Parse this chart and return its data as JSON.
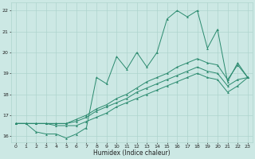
{
  "x_values": [
    0,
    1,
    2,
    3,
    4,
    5,
    6,
    7,
    8,
    9,
    10,
    11,
    12,
    13,
    14,
    15,
    16,
    17,
    18,
    19,
    20,
    21,
    22,
    23
  ],
  "line1": [
    16.6,
    16.6,
    16.2,
    16.1,
    16.1,
    15.9,
    16.1,
    16.4,
    18.8,
    18.5,
    19.8,
    19.2,
    20.0,
    19.3,
    20.0,
    21.6,
    22.0,
    21.7,
    22.0,
    20.2,
    21.1,
    18.6,
    19.5,
    18.8
  ],
  "line2": [
    16.6,
    16.6,
    16.6,
    16.6,
    16.6,
    16.6,
    16.8,
    17.0,
    17.3,
    17.5,
    17.8,
    18.0,
    18.3,
    18.6,
    18.8,
    19.0,
    19.3,
    19.5,
    19.7,
    19.5,
    19.4,
    18.7,
    19.4,
    18.8
  ],
  "line3": [
    16.6,
    16.6,
    16.6,
    16.6,
    16.6,
    16.6,
    16.7,
    16.9,
    17.2,
    17.4,
    17.6,
    17.8,
    18.1,
    18.3,
    18.5,
    18.7,
    18.9,
    19.1,
    19.3,
    19.1,
    19.0,
    18.4,
    18.7,
    18.8
  ],
  "line4": [
    16.6,
    16.6,
    16.6,
    16.6,
    16.5,
    16.5,
    16.5,
    16.7,
    16.9,
    17.1,
    17.4,
    17.6,
    17.8,
    18.0,
    18.2,
    18.4,
    18.6,
    18.8,
    19.0,
    18.8,
    18.7,
    18.1,
    18.4,
    18.8
  ],
  "line_color": "#2a8a6e",
  "bg_color": "#cce8e4",
  "grid_color": "#aed4ce",
  "xlabel": "Humidex (Indice chaleur)",
  "ylim": [
    15.7,
    22.4
  ],
  "xlim": [
    -0.5,
    23.5
  ],
  "yticks": [
    16,
    17,
    18,
    19,
    20,
    21,
    22
  ],
  "xticks": [
    0,
    1,
    2,
    3,
    4,
    5,
    6,
    7,
    8,
    9,
    10,
    11,
    12,
    13,
    14,
    15,
    16,
    17,
    18,
    19,
    20,
    21,
    22,
    23
  ]
}
